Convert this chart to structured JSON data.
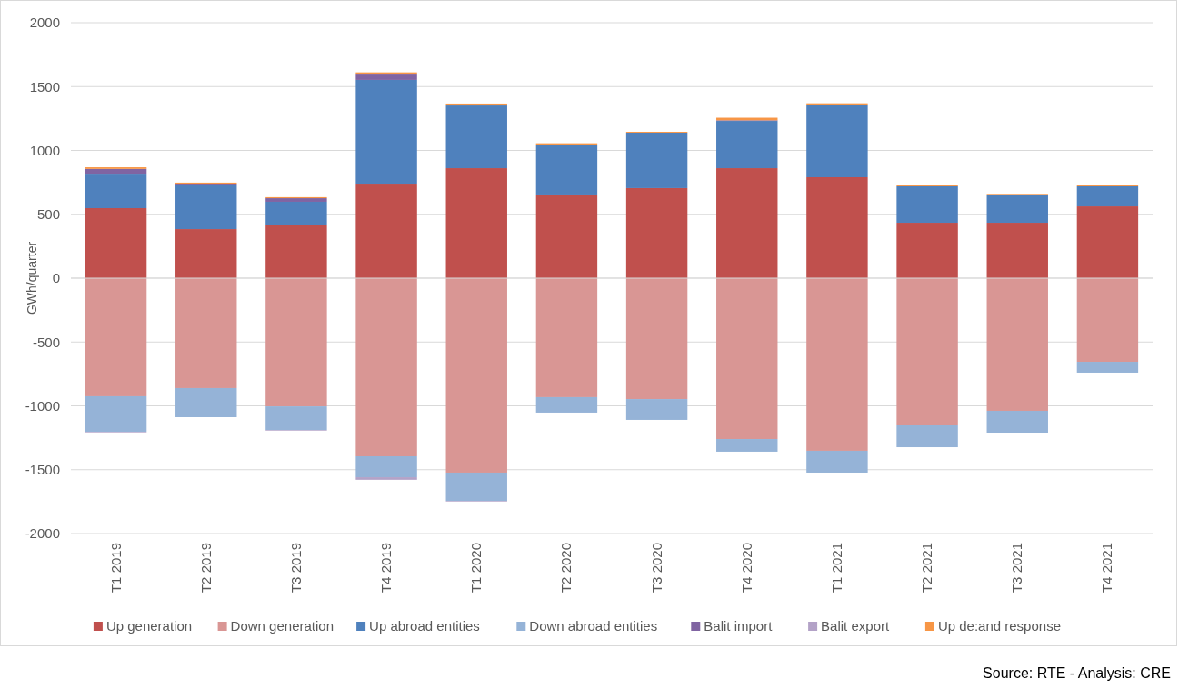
{
  "chart_data": {
    "type": "bar",
    "stacked": true,
    "ylabel": "GWh/quarter",
    "categories": [
      "T1 2019",
      "T2 2019",
      "T3 2019",
      "T4 2019",
      "T1 2020",
      "T2 2020",
      "T3 2020",
      "T4 2020",
      "T1 2021",
      "T2 2021",
      "T3 2021",
      "T4 2021"
    ],
    "series": [
      {
        "name": "Up generation",
        "color": "#c0504d",
        "values": [
          548,
          384,
          413,
          740,
          861,
          655,
          705,
          861,
          790,
          434,
          434,
          562
        ]
      },
      {
        "name": "Down generation",
        "color": "#d99694",
        "values": [
          -925,
          -861,
          -1004,
          -1395,
          -1523,
          -932,
          -947,
          -1260,
          -1352,
          -1153,
          -1039,
          -655
        ]
      },
      {
        "name": "Up abroad entities",
        "color": "#4f81bd",
        "values": [
          270,
          342,
          185,
          812,
          491,
          391,
          434,
          370,
          569,
          285,
          221,
          157
        ]
      },
      {
        "name": "Down abroad entities",
        "color": "#95b3d7",
        "values": [
          -278,
          -228,
          -185,
          -164,
          -221,
          -121,
          -163,
          -99,
          -171,
          -171,
          -171,
          -85
        ]
      },
      {
        "name": "Balit import",
        "color": "#8064a2",
        "values": [
          37,
          14,
          28,
          49,
          0,
          0,
          0,
          5,
          0,
          0,
          0,
          0
        ]
      },
      {
        "name": "Balit export",
        "color": "#b3a2c7",
        "values": [
          -5,
          null,
          -5,
          -20,
          -5,
          null,
          null,
          null,
          null,
          null,
          null,
          null
        ]
      },
      {
        "name": "Up de:and response",
        "color": "#f79646",
        "values": [
          13,
          8,
          8,
          10,
          15,
          10,
          7,
          20,
          10,
          7,
          5,
          7
        ]
      }
    ],
    "ylim": [
      -2000,
      2000
    ],
    "yticks": [
      -2000,
      -1500,
      -1000,
      -500,
      0,
      500,
      1000,
      1500,
      2000
    ],
    "grid": "y",
    "legend": "bottom",
    "annotations": [
      "Source: RTE - Analysis: CRE"
    ]
  }
}
